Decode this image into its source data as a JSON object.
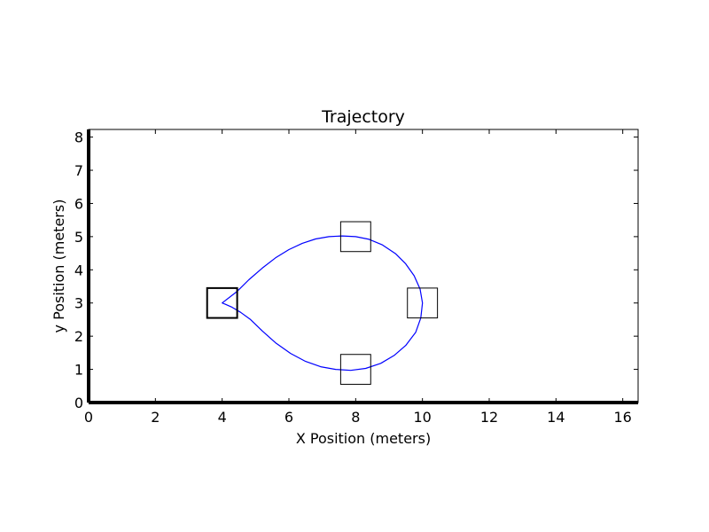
{
  "chart_data": {
    "type": "line",
    "title": "Trajectory",
    "xlabel": "X Position (meters)",
    "ylabel": "y Position (meters)",
    "xlim": [
      0,
      16.46
    ],
    "ylim": [
      0,
      8.23
    ],
    "xticks": [
      0,
      2,
      4,
      6,
      8,
      10,
      12,
      14,
      16
    ],
    "yticks": [
      0,
      1,
      2,
      3,
      4,
      5,
      6,
      7,
      8
    ],
    "grid": false,
    "series": [
      {
        "color": "#0000ff",
        "x": [
          4.45,
          4.8,
          5.2,
          5.6,
          6.0,
          6.4,
          6.8,
          7.2,
          7.6,
          8.0,
          8.4,
          8.8,
          9.2,
          9.5,
          9.75,
          9.93,
          10.0,
          9.95,
          9.8,
          9.5,
          9.15,
          8.75,
          8.3,
          7.85,
          7.4,
          6.95,
          6.5,
          6.05,
          5.6,
          5.2,
          4.85,
          4.55,
          4.3,
          4.1,
          4.0,
          4.45
        ],
        "y": [
          3.35,
          3.7,
          4.05,
          4.36,
          4.61,
          4.8,
          4.93,
          5.0,
          5.02,
          5.0,
          4.92,
          4.75,
          4.48,
          4.18,
          3.82,
          3.42,
          3.0,
          2.55,
          2.12,
          1.72,
          1.42,
          1.18,
          1.03,
          0.97,
          1.0,
          1.08,
          1.24,
          1.48,
          1.8,
          2.16,
          2.5,
          2.72,
          2.87,
          2.96,
          3.0,
          3.35
        ]
      }
    ],
    "markers": [
      {
        "x": 4.0,
        "y": 3.0,
        "size": 0.9,
        "color": "#000000"
      },
      {
        "x": 8.0,
        "y": 5.0,
        "size": 0.9,
        "color": "#000000"
      },
      {
        "x": 10.0,
        "y": 3.0,
        "size": 0.9,
        "color": "#000000"
      },
      {
        "x": 8.0,
        "y": 1.0,
        "size": 0.9,
        "color": "#000000"
      }
    ]
  }
}
